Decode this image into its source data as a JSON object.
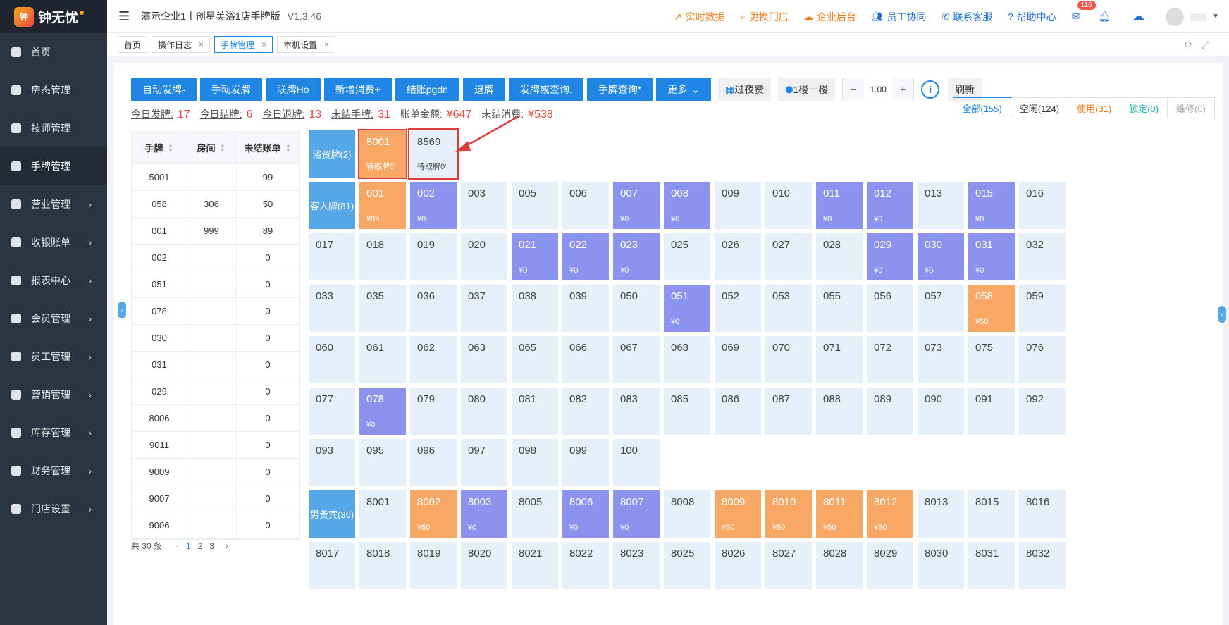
{
  "brand": {
    "name": "钟无忧"
  },
  "sidebar": {
    "items": [
      {
        "label": "首页",
        "arrow": false
      },
      {
        "label": "房态管理",
        "arrow": false
      },
      {
        "label": "技师管理",
        "arrow": false
      },
      {
        "label": "手牌管理",
        "arrow": false,
        "active": true
      },
      {
        "label": "营业管理",
        "arrow": true
      },
      {
        "label": "收银账单",
        "arrow": true
      },
      {
        "label": "报表中心",
        "arrow": true
      },
      {
        "label": "会员管理",
        "arrow": true
      },
      {
        "label": "员工管理",
        "arrow": true
      },
      {
        "label": "营销管理",
        "arrow": true
      },
      {
        "label": "库存管理",
        "arrow": true
      },
      {
        "label": "财务管理",
        "arrow": true
      },
      {
        "label": "门店设置",
        "arrow": true
      }
    ]
  },
  "header": {
    "title": "演示企业1丨创星美浴1店手牌版",
    "version": "V1.3.46",
    "links": [
      {
        "label": "实时数据",
        "icon": "chart-icon",
        "color": "org"
      },
      {
        "label": "更换门店",
        "icon": "search-icon",
        "color": "org"
      },
      {
        "label": "企业后台",
        "icon": "cloud-icon",
        "color": "org"
      },
      {
        "label": "员工协同",
        "icon": "users-icon",
        "color": "blue"
      },
      {
        "label": "联系客服",
        "icon": "phone-icon",
        "color": "blue"
      },
      {
        "label": "帮助中心",
        "icon": "help-icon",
        "color": "blue"
      }
    ],
    "mail_badge": "116"
  },
  "tabs": [
    {
      "label": "首页",
      "closable": false
    },
    {
      "label": "操作日志",
      "closable": true
    },
    {
      "label": "手牌管理",
      "closable": true,
      "active": true
    },
    {
      "label": "本机设置",
      "closable": true
    }
  ],
  "toolbar": {
    "buttons": [
      "自动发牌-",
      "手动发牌",
      "联牌Ho",
      "新增消费+",
      "结账pgdn",
      "退牌",
      "发牌或查询.",
      "手牌查询*",
      "更多"
    ],
    "overnight": "过夜费",
    "floor": "1楼一楼",
    "step_value": "1.00",
    "refresh": "刷新"
  },
  "stats": [
    {
      "label": "今日发牌:",
      "value": "17"
    },
    {
      "label": "今日结牌:",
      "value": "6"
    },
    {
      "label": "今日退牌:",
      "value": "13"
    },
    {
      "label": "未结手牌:",
      "value": "31"
    },
    {
      "label": "账单金额:",
      "value": "¥647"
    },
    {
      "label": "未结消费:",
      "value": "¥538"
    }
  ],
  "filters": [
    {
      "label": "全部(155)",
      "color": "#1f86e5"
    },
    {
      "label": "空闲(124)",
      "color": "#333"
    },
    {
      "label": "使用(31)",
      "color": "#f07c1a"
    },
    {
      "label": "锁定(0)",
      "color": "#19b4b4"
    },
    {
      "label": "维修(0)",
      "color": "#aaa"
    }
  ],
  "table": {
    "headers": [
      "手牌",
      "房间",
      "未结账单"
    ],
    "rows": [
      [
        "5001",
        "",
        "99"
      ],
      [
        "058",
        "306",
        "50"
      ],
      [
        "001",
        "999",
        "89"
      ],
      [
        "002",
        "",
        "0"
      ],
      [
        "051",
        "",
        "0"
      ],
      [
        "078",
        "",
        "0"
      ],
      [
        "030",
        "",
        "0"
      ],
      [
        "031",
        "",
        "0"
      ],
      [
        "029",
        "",
        "0"
      ],
      [
        "8006",
        "",
        "0"
      ],
      [
        "9011",
        "",
        "0"
      ],
      [
        "9009",
        "",
        "0"
      ],
      [
        "9007",
        "",
        "0"
      ],
      [
        "9006",
        "",
        "0"
      ]
    ]
  },
  "pager": {
    "total": "共 30 条",
    "pages": [
      "1",
      "2",
      "3"
    ]
  },
  "categories": [
    {
      "label": "浴资牌(2)"
    },
    {
      "label": "客人牌(81)"
    },
    {
      "label": "男贵宾(36)"
    }
  ],
  "cells": [
    {
      "n": "5001",
      "p": "待取牌0'",
      "s": "org"
    },
    {
      "n": "8569",
      "p": "待取牌0'",
      "s": ""
    },
    {
      "n": "001",
      "p": "¥89",
      "s": "org"
    },
    {
      "n": "002",
      "p": "¥0",
      "s": "pur"
    },
    {
      "n": "003",
      "p": "",
      "s": ""
    },
    {
      "n": "005",
      "p": "",
      "s": ""
    },
    {
      "n": "006",
      "p": "",
      "s": ""
    },
    {
      "n": "007",
      "p": "¥0",
      "s": "pur"
    },
    {
      "n": "008",
      "p": "¥0",
      "s": "pur"
    },
    {
      "n": "009",
      "p": "",
      "s": ""
    },
    {
      "n": "010",
      "p": "",
      "s": ""
    },
    {
      "n": "011",
      "p": "¥0",
      "s": "pur"
    },
    {
      "n": "012",
      "p": "¥0",
      "s": "pur"
    },
    {
      "n": "013",
      "p": "",
      "s": ""
    },
    {
      "n": "015",
      "p": "¥0",
      "s": "pur"
    },
    {
      "n": "016",
      "p": "",
      "s": ""
    },
    {
      "n": "017",
      "p": "",
      "s": ""
    },
    {
      "n": "018",
      "p": "",
      "s": ""
    },
    {
      "n": "019",
      "p": "",
      "s": ""
    },
    {
      "n": "020",
      "p": "",
      "s": ""
    },
    {
      "n": "021",
      "p": "¥0",
      "s": "pur"
    },
    {
      "n": "022",
      "p": "¥0",
      "s": "pur"
    },
    {
      "n": "023",
      "p": "¥0",
      "s": "pur"
    },
    {
      "n": "025",
      "p": "",
      "s": ""
    },
    {
      "n": "026",
      "p": "",
      "s": ""
    },
    {
      "n": "027",
      "p": "",
      "s": ""
    },
    {
      "n": "028",
      "p": "",
      "s": ""
    },
    {
      "n": "029",
      "p": "¥0",
      "s": "pur"
    },
    {
      "n": "030",
      "p": "¥0",
      "s": "pur"
    },
    {
      "n": "031",
      "p": "¥0",
      "s": "pur"
    },
    {
      "n": "032",
      "p": "",
      "s": ""
    },
    {
      "n": "033",
      "p": "",
      "s": ""
    },
    {
      "n": "035",
      "p": "",
      "s": ""
    },
    {
      "n": "036",
      "p": "",
      "s": ""
    },
    {
      "n": "037",
      "p": "",
      "s": ""
    },
    {
      "n": "038",
      "p": "",
      "s": ""
    },
    {
      "n": "039",
      "p": "",
      "s": ""
    },
    {
      "n": "050",
      "p": "",
      "s": ""
    },
    {
      "n": "051",
      "p": "¥0",
      "s": "pur"
    },
    {
      "n": "052",
      "p": "",
      "s": ""
    },
    {
      "n": "053",
      "p": "",
      "s": ""
    },
    {
      "n": "055",
      "p": "",
      "s": ""
    },
    {
      "n": "056",
      "p": "",
      "s": ""
    },
    {
      "n": "057",
      "p": "",
      "s": ""
    },
    {
      "n": "058",
      "p": "¥50",
      "s": "org"
    },
    {
      "n": "059",
      "p": "",
      "s": ""
    },
    {
      "n": "060",
      "p": "",
      "s": ""
    },
    {
      "n": "061",
      "p": "",
      "s": ""
    },
    {
      "n": "062",
      "p": "",
      "s": ""
    },
    {
      "n": "063",
      "p": "",
      "s": ""
    },
    {
      "n": "065",
      "p": "",
      "s": ""
    },
    {
      "n": "066",
      "p": "",
      "s": ""
    },
    {
      "n": "067",
      "p": "",
      "s": ""
    },
    {
      "n": "068",
      "p": "",
      "s": ""
    },
    {
      "n": "069",
      "p": "",
      "s": ""
    },
    {
      "n": "070",
      "p": "",
      "s": ""
    },
    {
      "n": "071",
      "p": "",
      "s": ""
    },
    {
      "n": "072",
      "p": "",
      "s": ""
    },
    {
      "n": "073",
      "p": "",
      "s": ""
    },
    {
      "n": "075",
      "p": "",
      "s": ""
    },
    {
      "n": "076",
      "p": "",
      "s": ""
    },
    {
      "n": "077",
      "p": "",
      "s": ""
    },
    {
      "n": "078",
      "p": "¥0",
      "s": "pur"
    },
    {
      "n": "079",
      "p": "",
      "s": ""
    },
    {
      "n": "080",
      "p": "",
      "s": ""
    },
    {
      "n": "081",
      "p": "",
      "s": ""
    },
    {
      "n": "082",
      "p": "",
      "s": ""
    },
    {
      "n": "083",
      "p": "",
      "s": ""
    },
    {
      "n": "085",
      "p": "",
      "s": ""
    },
    {
      "n": "086",
      "p": "",
      "s": ""
    },
    {
      "n": "087",
      "p": "",
      "s": ""
    },
    {
      "n": "088",
      "p": "",
      "s": ""
    },
    {
      "n": "089",
      "p": "",
      "s": ""
    },
    {
      "n": "090",
      "p": "",
      "s": ""
    },
    {
      "n": "091",
      "p": "",
      "s": ""
    },
    {
      "n": "092",
      "p": "",
      "s": ""
    },
    {
      "n": "093",
      "p": "",
      "s": ""
    },
    {
      "n": "095",
      "p": "",
      "s": ""
    },
    {
      "n": "096",
      "p": "",
      "s": ""
    },
    {
      "n": "097",
      "p": "",
      "s": ""
    },
    {
      "n": "098",
      "p": "",
      "s": ""
    },
    {
      "n": "099",
      "p": "",
      "s": ""
    },
    {
      "n": "100",
      "p": "",
      "s": ""
    },
    {
      "n": "8001",
      "p": "",
      "s": ""
    },
    {
      "n": "8002",
      "p": "¥50",
      "s": "org"
    },
    {
      "n": "8003",
      "p": "¥0",
      "s": "pur"
    },
    {
      "n": "8005",
      "p": "",
      "s": ""
    },
    {
      "n": "8006",
      "p": "¥0",
      "s": "pur"
    },
    {
      "n": "8007",
      "p": "¥0",
      "s": "pur"
    },
    {
      "n": "8008",
      "p": "",
      "s": ""
    },
    {
      "n": "8009",
      "p": "¥50",
      "s": "org"
    },
    {
      "n": "8010",
      "p": "¥50",
      "s": "org"
    },
    {
      "n": "8011",
      "p": "¥50",
      "s": "org"
    },
    {
      "n": "8012",
      "p": "¥50",
      "s": "org"
    },
    {
      "n": "8013",
      "p": "",
      "s": ""
    },
    {
      "n": "8015",
      "p": "",
      "s": ""
    },
    {
      "n": "8016",
      "p": "",
      "s": ""
    },
    {
      "n": "8017",
      "p": "",
      "s": ""
    },
    {
      "n": "8018",
      "p": "",
      "s": ""
    },
    {
      "n": "8019",
      "p": "",
      "s": ""
    },
    {
      "n": "8020",
      "p": "",
      "s": ""
    },
    {
      "n": "8021",
      "p": "",
      "s": ""
    },
    {
      "n": "8022",
      "p": "",
      "s": ""
    },
    {
      "n": "8023",
      "p": "",
      "s": ""
    },
    {
      "n": "8025",
      "p": "",
      "s": ""
    },
    {
      "n": "8026",
      "p": "",
      "s": ""
    },
    {
      "n": "8027",
      "p": "",
      "s": ""
    },
    {
      "n": "8028",
      "p": "",
      "s": ""
    },
    {
      "n": "8029",
      "p": "",
      "s": ""
    },
    {
      "n": "8030",
      "p": "",
      "s": ""
    },
    {
      "n": "8031",
      "p": "",
      "s": ""
    },
    {
      "n": "8032",
      "p": "",
      "s": ""
    }
  ]
}
